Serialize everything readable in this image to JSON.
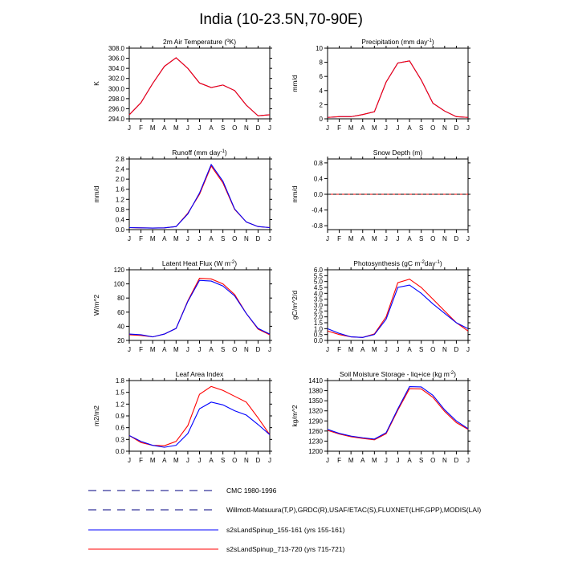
{
  "page": {
    "title": "India (10-23.5N,70-90E)"
  },
  "months": [
    "J",
    "F",
    "M",
    "A",
    "M",
    "J",
    "J",
    "A",
    "S",
    "O",
    "N",
    "D",
    "J"
  ],
  "colors": {
    "blue": "#0000ff",
    "red": "#ff0000",
    "navy": "#000080",
    "axis": "#000000"
  },
  "chart_data": [
    {
      "type": "line",
      "title": "2m Air Temperature (°K)",
      "title_main": "2m Air Temperature (",
      "title_sup": "o",
      "title_tail": "K)",
      "ylabel": "K",
      "ylim": [
        294,
        308
      ],
      "yticks": [
        294.0,
        296.0,
        298.0,
        300.0,
        302.0,
        304.0,
        306.0,
        308.0
      ],
      "ytick_labels": [
        "294.0",
        "296.0",
        "298.0",
        "300.0",
        "302.0",
        "304.0",
        "306.0",
        "308.0"
      ],
      "series": [
        {
          "name": "s2sLandSpinup_155-161",
          "color": "#0000ff",
          "values": [
            294.8,
            297.2,
            301.0,
            304.4,
            306.1,
            304.0,
            301.1,
            300.2,
            300.7,
            299.6,
            296.7,
            294.6,
            294.8
          ]
        },
        {
          "name": "s2sLandSpinup_713-720",
          "color": "#ff0000",
          "values": [
            294.8,
            297.2,
            301.0,
            304.4,
            306.1,
            304.0,
            301.1,
            300.2,
            300.7,
            299.6,
            296.7,
            294.6,
            294.8
          ]
        }
      ]
    },
    {
      "type": "line",
      "title": "Precipitation (mm day-1)",
      "title_main": "Precipitation (mm day",
      "title_sup": "-1",
      "title_tail": ")",
      "ylabel": "mm/d",
      "ylim": [
        0,
        10
      ],
      "yticks": [
        0,
        2,
        4,
        6,
        8,
        10
      ],
      "ytick_labels": [
        "0",
        "2",
        "4",
        "6",
        "8",
        "10"
      ],
      "series": [
        {
          "name": "s2sLandSpinup_155-161",
          "color": "#0000ff",
          "values": [
            0.2,
            0.3,
            0.3,
            0.6,
            1.0,
            5.2,
            7.9,
            8.2,
            5.5,
            2.2,
            1.1,
            0.3,
            0.2
          ]
        },
        {
          "name": "s2sLandSpinup_713-720",
          "color": "#ff0000",
          "values": [
            0.2,
            0.3,
            0.3,
            0.6,
            1.0,
            5.2,
            7.9,
            8.2,
            5.5,
            2.2,
            1.1,
            0.3,
            0.2
          ]
        }
      ]
    },
    {
      "type": "line",
      "title": "Runoff (mm day-1)",
      "title_main": "Runoff (mm day",
      "title_sup": "-1",
      "title_tail": ")",
      "ylabel": "mm/d",
      "ylim": [
        0,
        2.8
      ],
      "yticks": [
        0.0,
        0.4,
        0.8,
        1.2,
        1.6,
        2.0,
        2.4,
        2.8
      ],
      "ytick_labels": [
        "0.0",
        "0.4",
        "0.8",
        "1.2",
        "1.6",
        "2.0",
        "2.4",
        "2.8"
      ],
      "series": [
        {
          "name": "s2sLandSpinup_713-720",
          "color": "#ff0000",
          "values": [
            0.08,
            0.07,
            0.06,
            0.07,
            0.12,
            0.65,
            1.4,
            2.52,
            1.85,
            0.8,
            0.3,
            0.12,
            0.08
          ]
        },
        {
          "name": "s2sLandSpinup_155-161",
          "color": "#0000ff",
          "values": [
            0.08,
            0.07,
            0.06,
            0.07,
            0.12,
            0.62,
            1.45,
            2.58,
            1.92,
            0.82,
            0.3,
            0.12,
            0.08
          ]
        }
      ]
    },
    {
      "type": "line",
      "title": "Snow Depth (m)",
      "title_main": "Snow Depth (m)",
      "title_sup": "",
      "title_tail": "",
      "ylabel": "mm/d",
      "ylim": [
        -0.9,
        0.9
      ],
      "yticks": [
        -0.8,
        -0.4,
        0.0,
        0.4,
        0.8
      ],
      "ytick_labels": [
        "-0.8",
        "-0.4",
        "0.0",
        "0.4",
        "0.8"
      ],
      "series": [
        {
          "name": "s2sLandSpinup_155-161",
          "color": "#0000ff",
          "values": [
            0,
            0,
            0,
            0,
            0,
            0,
            0,
            0,
            0,
            0,
            0,
            0,
            0
          ]
        },
        {
          "name": "s2sLandSpinup_713-720",
          "color": "#ff0000",
          "values": [
            0,
            0,
            0,
            0,
            0,
            0,
            0,
            0,
            0,
            0,
            0,
            0,
            0
          ]
        },
        {
          "name": "CMC 1980-1996",
          "color": "#000000",
          "dashed": true,
          "values": [
            0,
            0,
            0,
            0,
            0,
            0,
            0,
            0,
            0,
            0,
            0,
            0,
            0
          ]
        }
      ]
    },
    {
      "type": "line",
      "title": "Latent Heat Flux (W m-2)",
      "title_main": "Latent Heat Flux (W m",
      "title_sup": "-2",
      "title_tail": ")",
      "ylabel": "W/m^2",
      "ylim": [
        20,
        120
      ],
      "yticks": [
        20,
        40,
        60,
        80,
        100,
        120
      ],
      "ytick_labels": [
        "20",
        "40",
        "60",
        "80",
        "100",
        "120"
      ],
      "series": [
        {
          "name": "s2sLandSpinup_713-720",
          "color": "#ff0000",
          "values": [
            28,
            27,
            25,
            29,
            37,
            76,
            108,
            107,
            100,
            85,
            58,
            36,
            28
          ]
        },
        {
          "name": "s2sLandSpinup_155-161",
          "color": "#0000ff",
          "values": [
            29,
            28,
            25,
            29,
            37,
            75,
            105,
            104,
            97,
            83,
            58,
            37,
            29
          ]
        }
      ]
    },
    {
      "type": "line",
      "title": "Photosynthesis (gC m-2day-1)",
      "title_main": "Photosynthesis (gC m",
      "title_sup": "-2",
      "title_mid": "day",
      "title_sup2": "-1",
      "title_tail": ")",
      "ylabel": "gC/m^2/d",
      "ylim": [
        0,
        6
      ],
      "yticks": [
        0.0,
        0.5,
        1.0,
        1.5,
        2.0,
        2.5,
        3.0,
        3.5,
        4.0,
        4.5,
        5.0,
        5.5,
        6.0
      ],
      "ytick_labels": [
        "0.0",
        "0.5",
        "1.0",
        "1.5",
        "2.0",
        "2.5",
        "3.0",
        "3.5",
        "4.0",
        "4.5",
        "5.0",
        "5.5",
        "6.0"
      ],
      "series": [
        {
          "name": "s2sLandSpinup_713-720",
          "color": "#ff0000",
          "values": [
            0.8,
            0.5,
            0.3,
            0.25,
            0.55,
            2.0,
            4.9,
            5.2,
            4.5,
            3.5,
            2.5,
            1.5,
            0.8
          ]
        },
        {
          "name": "s2sLandSpinup_155-161",
          "color": "#0000ff",
          "values": [
            1.0,
            0.6,
            0.3,
            0.25,
            0.5,
            1.8,
            4.5,
            4.7,
            4.0,
            3.1,
            2.3,
            1.5,
            1.0
          ]
        }
      ]
    },
    {
      "type": "line",
      "title": "Leaf Area Index",
      "title_main": "Leaf Area Index",
      "title_sup": "",
      "title_tail": "",
      "ylabel": "m2/m2",
      "ylim": [
        0,
        1.8
      ],
      "yticks": [
        0.0,
        0.3,
        0.6,
        0.9,
        1.2,
        1.5,
        1.8
      ],
      "ytick_labels": [
        "0.0",
        "0.3",
        "0.6",
        "0.9",
        "1.2",
        "1.5",
        "1.8"
      ],
      "series": [
        {
          "name": "s2sLandSpinup_713-720",
          "color": "#ff0000",
          "values": [
            0.4,
            0.22,
            0.15,
            0.14,
            0.25,
            0.65,
            1.45,
            1.65,
            1.55,
            1.4,
            1.25,
            0.85,
            0.42
          ]
        },
        {
          "name": "s2sLandSpinup_155-161",
          "color": "#0000ff",
          "values": [
            0.4,
            0.25,
            0.15,
            0.1,
            0.15,
            0.45,
            1.08,
            1.25,
            1.18,
            1.03,
            0.92,
            0.68,
            0.42
          ]
        }
      ]
    },
    {
      "type": "line",
      "title": "Soil Moisture Storage - liq+ice (kg m-2)",
      "title_main": "Soil Moisture Storage - liq+ice (kg m",
      "title_sup": "-2",
      "title_tail": ")",
      "ylabel": "kg/m^2",
      "ylim": [
        1200,
        1410
      ],
      "yticks": [
        1200,
        1230,
        1260,
        1290,
        1320,
        1350,
        1380,
        1410
      ],
      "ytick_labels": [
        "1200",
        "1230",
        "1260",
        "1290",
        "1320",
        "1350",
        "1380",
        "1410"
      ],
      "series": [
        {
          "name": "s2sLandSpinup_713-720",
          "color": "#ff0000",
          "values": [
            1262,
            1251,
            1243,
            1238,
            1234,
            1252,
            1322,
            1386,
            1385,
            1360,
            1318,
            1285,
            1265
          ]
        },
        {
          "name": "s2sLandSpinup_155-161",
          "color": "#0000ff",
          "values": [
            1265,
            1253,
            1245,
            1240,
            1236,
            1255,
            1326,
            1392,
            1391,
            1366,
            1323,
            1290,
            1267
          ]
        }
      ]
    }
  ],
  "legend": [
    {
      "label": "CMC 1980-1996",
      "color": "#000080",
      "style": "dashed"
    },
    {
      "label": "Willmott-Matsuura(T,P),GRDC(R),USAF/ETAC(S),FLUXNET(LHF,GPP),MODIS(LAI)",
      "color": "#000080",
      "style": "dashed"
    },
    {
      "label": "s2sLandSpinup_155-161 (yrs 155-161)",
      "color": "#0000ff",
      "style": "solid"
    },
    {
      "label": "s2sLandSpinup_713-720 (yrs 715-721)",
      "color": "#ff0000",
      "style": "solid"
    }
  ]
}
